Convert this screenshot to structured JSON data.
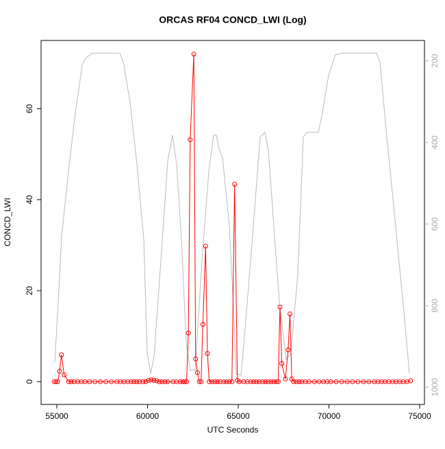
{
  "chart_data": {
    "type": "line",
    "title": "ORCAS RF04 CONCD_LWI (Log)",
    "x_label": "UTC Seconds",
    "y_label": "CONCD_LWI",
    "xlim": [
      54130,
      75265
    ],
    "xticks": [
      55000,
      60000,
      65000,
      70000,
      75000
    ],
    "ylim": [
      -5,
      75
    ],
    "yticks": [
      0,
      20,
      40,
      60
    ],
    "y2lim": [
      1042,
      150
    ],
    "y2ticks": [
      200,
      400,
      600,
      800,
      1000
    ],
    "series": [
      {
        "color": "#ff0000",
        "markers": true,
        "x": [
          54850,
          54950,
          55050,
          55150,
          55250,
          55400,
          55650,
          55800,
          55950,
          56150,
          56350,
          56550,
          56800,
          57100,
          57400,
          57700,
          58000,
          58300,
          58500,
          58700,
          58900,
          59100,
          59250,
          59400,
          59550,
          59750,
          59900,
          60050,
          60200,
          60350,
          60500,
          60650,
          60800,
          60950,
          61100,
          61400,
          61600,
          61800,
          61950,
          62050,
          62150,
          62250,
          62350,
          62550,
          62650,
          62750,
          62850,
          62950,
          63050,
          63200,
          63300,
          63400,
          63550,
          63700,
          63850,
          64000,
          64200,
          64350,
          64500,
          64650,
          64800,
          64950,
          65050,
          65300,
          65500,
          65700,
          65850,
          66000,
          66150,
          66350,
          66500,
          66650,
          66800,
          66950,
          67100,
          67200,
          67300,
          67400,
          67600,
          67750,
          67850,
          67950,
          68050,
          68200,
          68350,
          68500,
          68700,
          68900,
          69200,
          69450,
          69700,
          69900,
          70100,
          70400,
          70700,
          71000,
          71300,
          71600,
          71900,
          72200,
          72500,
          72700,
          72900,
          73100,
          73300,
          73500,
          73700,
          73900,
          74100,
          74300,
          74500
        ],
        "values": [
          0,
          0,
          0,
          2.3,
          5.9,
          1.5,
          0,
          0,
          0,
          0,
          0,
          0,
          0,
          0,
          0,
          0,
          0,
          0,
          0,
          0,
          0,
          0,
          0,
          0,
          0,
          0,
          0,
          0.3,
          0.4,
          0.3,
          0.2,
          0,
          0,
          0,
          0,
          0,
          0,
          0,
          0,
          0,
          0,
          10.7,
          53.2,
          72,
          5,
          2,
          0,
          0,
          12.6,
          29.8,
          6.2,
          0,
          0,
          0,
          0,
          0,
          0,
          0,
          0,
          0,
          43.4,
          0.3,
          0,
          0,
          0,
          0,
          0,
          0,
          0,
          0,
          0,
          0,
          0,
          0,
          0,
          0,
          16.4,
          4,
          0.6,
          7,
          14.9,
          0.6,
          0,
          0,
          0,
          0,
          0,
          0,
          0,
          0,
          0,
          0,
          0,
          0,
          0,
          0,
          0,
          0,
          0,
          0,
          0,
          0,
          0,
          0,
          0,
          0,
          0,
          0,
          0,
          0,
          0.2
        ]
      },
      {
        "color": "#bbbbbb",
        "axis": "y2",
        "markers": false,
        "x": [
          54887,
          55075,
          55264,
          55642,
          56019,
          56208,
          56396,
          56585,
          56962,
          58472,
          58660,
          59038,
          59415,
          59793,
          59981,
          60170,
          60359,
          60736,
          61113,
          61377,
          61604,
          61868,
          62132,
          62358,
          62623,
          63000,
          63377,
          63642,
          63793,
          63944,
          64132,
          64510,
          64774,
          64887,
          65151,
          65377,
          65830,
          66208,
          66472,
          66660,
          66962,
          67264,
          67642,
          67906,
          68283,
          68585,
          68774,
          69415,
          69604,
          69981,
          70358,
          70736,
          72623,
          72811,
          73189,
          73566,
          74132,
          74434
        ],
        "values": [
          938,
          790,
          630,
          470,
          328,
          269,
          210,
          193,
          181,
          181,
          202,
          302,
          454,
          639,
          916,
          966,
          924,
          689,
          445,
          382,
          454,
          639,
          891,
          958,
          958,
          689,
          470,
          382,
          382,
          417,
          437,
          605,
          840,
          966,
          971,
          857,
          605,
          387,
          375,
          420,
          605,
          790,
          932,
          916,
          723,
          387,
          375,
          375,
          336,
          235,
          185,
          181,
          181,
          202,
          387,
          555,
          815,
          966
        ]
      }
    ]
  }
}
